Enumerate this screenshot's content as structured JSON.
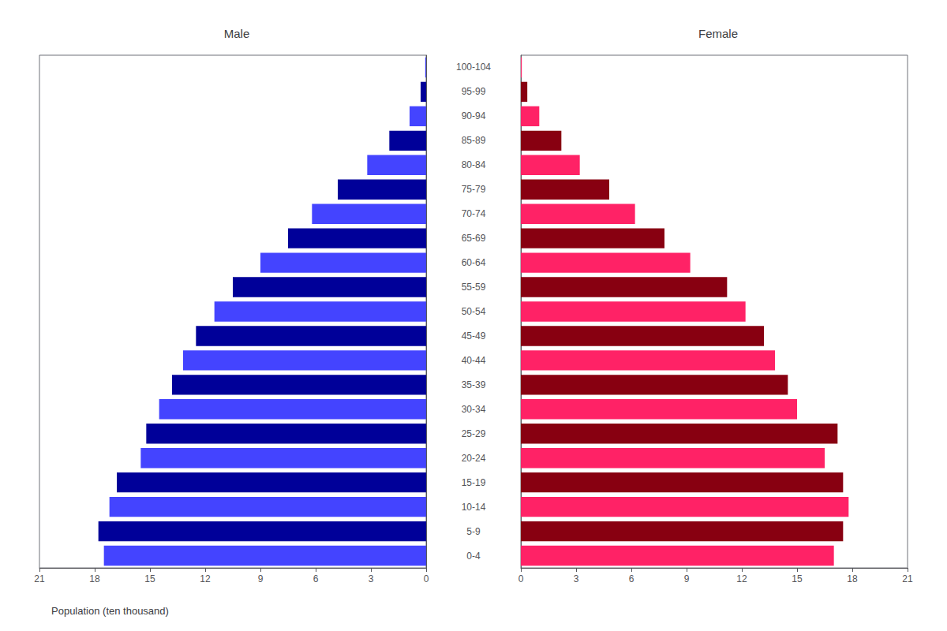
{
  "chart_data": {
    "type": "bar",
    "orientation": "horizontal",
    "categories": [
      "0-4",
      "5-9",
      "10-14",
      "15-19",
      "20-24",
      "25-29",
      "30-34",
      "35-39",
      "40-44",
      "45-49",
      "50-54",
      "55-59",
      "60-64",
      "65-69",
      "70-74",
      "75-79",
      "80-84",
      "85-89",
      "90-94",
      "95-99",
      "100-104"
    ],
    "series": [
      {
        "name": "Male",
        "values": [
          17.5,
          17.8,
          17.2,
          16.8,
          15.5,
          15.2,
          14.5,
          13.8,
          13.2,
          12.5,
          11.5,
          10.5,
          9.0,
          7.5,
          6.2,
          4.8,
          3.2,
          2.0,
          0.9,
          0.3,
          0.05
        ],
        "colors": [
          "#4444FF",
          "#000099",
          "#4444FF",
          "#000099",
          "#4444FF",
          "#000099",
          "#4444FF",
          "#000099",
          "#4444FF",
          "#000099",
          "#4444FF",
          "#000099",
          "#4444FF",
          "#000099",
          "#4444FF",
          "#000099",
          "#4444FF",
          "#000099",
          "#4444FF",
          "#000099",
          "#4444FF"
        ]
      },
      {
        "name": "Female",
        "values": [
          17.0,
          17.5,
          17.8,
          17.5,
          16.5,
          17.2,
          15.0,
          14.5,
          13.8,
          13.2,
          12.2,
          11.2,
          9.2,
          7.8,
          6.2,
          4.8,
          3.2,
          2.2,
          1.0,
          0.35,
          0.05
        ],
        "colors": [
          "#FF2266",
          "#880011",
          "#FF2266",
          "#880011",
          "#FF2266",
          "#880011",
          "#FF2266",
          "#880011",
          "#FF2266",
          "#880011",
          "#FF2266",
          "#880011",
          "#FF2266",
          "#880011",
          "#FF2266",
          "#880011",
          "#FF2266",
          "#880011",
          "#FF2266",
          "#880011",
          "#FF2266"
        ]
      }
    ],
    "xlim": [
      0,
      21
    ],
    "xticks": [
      0,
      3,
      6,
      9,
      12,
      15,
      18,
      21
    ],
    "xlabel": "Population (ten thousand)",
    "grid": false
  }
}
